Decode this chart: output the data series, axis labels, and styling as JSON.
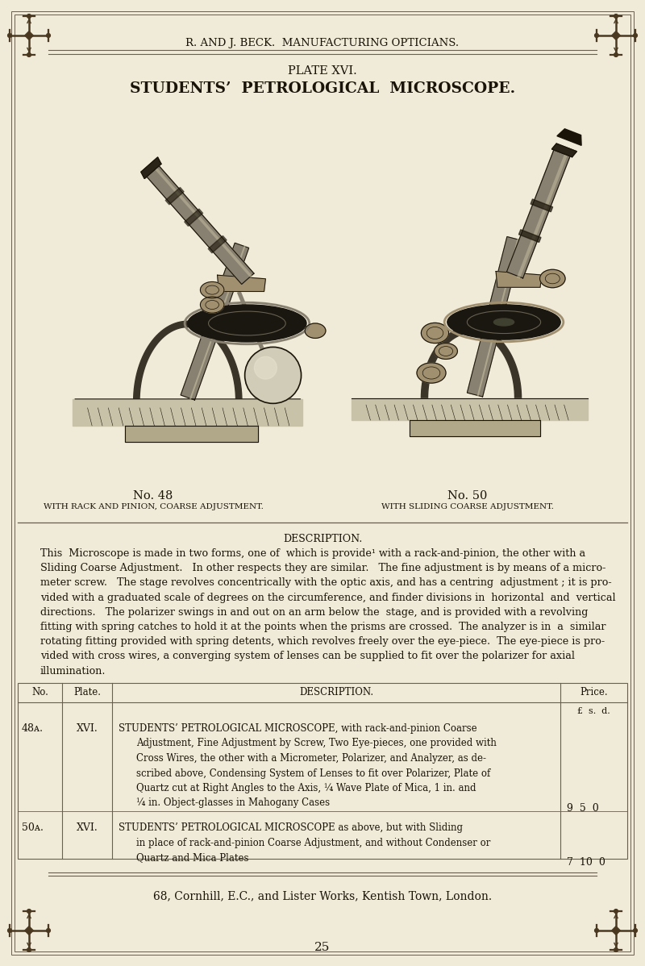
{
  "page_color": "#f0ead8",
  "bg_color": "#f5f0dc",
  "text_color": "#1a1408",
  "line_color": "#6a6050",
  "dark_color": "#2a2010",
  "header_text": "R. AND J. BECK.  MANUFACTURING OPTICIANS.",
  "plate_text": "PLATE XVI.",
  "title_text": "STUDENTS’  PETROLOGICAL  MICROSCOPE.",
  "no48_label": "No. 48",
  "no48_sub": "WITH RACK AND PINION, COARSE ADJUSTMENT.",
  "no50_label": "No. 50",
  "no50_sub": "WITH SLIDING COARSE ADJUSTMENT.",
  "description_header": "DESCRIPTION.",
  "desc_para": "This  Microscope is made in two forms, one of  which is provide¹ with a rack-and-pinion, the other with a Sliding Coarse Adjustment.   In other respects they are similar.   The fine adjustment is by means of a micro-meter screw.   The stage revolves concentrically with the optic axis, and has a centring  adjustment ; it is pro-vided with a graduated scale of degrees on the circumference, and finder divisions in  horizontal  and  vertical directions.   The polarizer swings in and out on an arm below the  stage, and is provided with a revolving fitting with spring catches to hold it at the points when the prisms are crossed.  The analyzer is in  a  similar rotating fitting provided with spring detents, which revolves freely over the eye-piece.  The eye-piece is pro-vided with cross wires, a converging system of lenses can be supplied to fit over the polarizer for axial illumination.",
  "table_headers": [
    "No.",
    "Plate.",
    "DESCRIPTION.",
    "Price."
  ],
  "row1_no": "48ᴀ.",
  "row1_plate": "XVI.",
  "row1_desc_lines": [
    "STUDENTS’ PETROLOGICAL MICROSCOPE, with rack-and-pinion Coarse",
    "Adjustment, Fine Adjustment by Screw, Two Eye-pieces, one provided with",
    "Cross Wires, the other with a Micrometer, Polarizer, and Analyzer, as de-",
    "scribed above, Condensing System of Lenses to fit over Polarizer, Plate of",
    "Quartz cut at Right Angles to the Axis, ¼ Wave Plate of Mica, 1 in. and",
    "¼ in. Object-glasses in Mahogany Cases"
  ],
  "row1_price": "9  5  0",
  "row2_no": "50ᴀ.",
  "row2_plate": "XVI.",
  "row2_desc_lines": [
    "STUDENTS’ PETROLOGICAL MICROSCOPE as above, but with Sliding",
    "in place of rack-and-pinion Coarse Adjustment, and without Condenser or",
    "Quartz and Mica Plates"
  ],
  "row2_price": "7  10  0",
  "price_sub": "£  s.  d.",
  "footer": "68, Cornhill, E.C., and Lister Works, Kentish Town, London.",
  "page_num": "25"
}
